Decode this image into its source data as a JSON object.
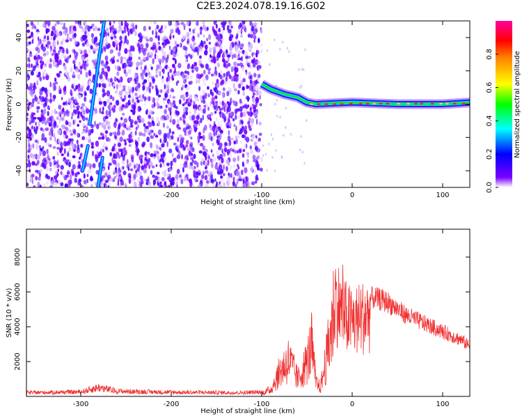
{
  "title": "C2E3.2024.078.19.16.G02",
  "chart_data": [
    {
      "type": "heatmap",
      "xlabel": "Height of straight line (km)",
      "ylabel": "Frequency (Hz)",
      "xlim": [
        -360,
        130
      ],
      "ylim": [
        -50,
        50
      ],
      "xticks": [
        -300,
        -200,
        -100,
        0,
        100
      ],
      "yticks": [
        -40,
        -20,
        0,
        20,
        40
      ],
      "colorbar": {
        "label": "Normalized spectral amplitude",
        "range": [
          0,
          1
        ],
        "ticks": [
          0.0,
          0.2,
          0.4,
          0.6,
          0.8
        ],
        "colors": [
          "#ffffff",
          "#7a00ff",
          "#0000ff",
          "#00ffff",
          "#00ff00",
          "#ffff00",
          "#ff0000",
          "#ff00a0"
        ]
      },
      "noise_region_x": [
        -360,
        -100
      ],
      "streak_segments": [
        {
          "x": [
            -290,
            -274
          ],
          "y": [
            -12,
            50
          ]
        },
        {
          "x": [
            -298,
            -292
          ],
          "y": [
            -40,
            -25
          ]
        },
        {
          "x": [
            -281,
            -276
          ],
          "y": [
            -50,
            -32
          ]
        }
      ],
      "ridge": [
        {
          "x": -100,
          "y": 12
        },
        {
          "x": -90,
          "y": 9
        },
        {
          "x": -75,
          "y": 6
        },
        {
          "x": -60,
          "y": 4
        },
        {
          "x": -50,
          "y": 1
        },
        {
          "x": -40,
          "y": 0
        },
        {
          "x": -20,
          "y": 0.5
        },
        {
          "x": 0,
          "y": 1
        },
        {
          "x": 50,
          "y": 0
        },
        {
          "x": 100,
          "y": 0
        },
        {
          "x": 130,
          "y": 1
        }
      ]
    },
    {
      "type": "line",
      "xlabel": "Height of straight line (km)",
      "ylabel": "SNR (10 * v/v)",
      "xlim": [
        -360,
        130
      ],
      "ylim": [
        0,
        9600
      ],
      "xticks": [
        -300,
        -200,
        -100,
        0,
        100
      ],
      "yticks": [
        2000,
        4000,
        6000,
        8000
      ],
      "series": [
        {
          "color": "#f03030",
          "envelope": [
            {
              "x": -360,
              "y": 250
            },
            {
              "x": -300,
              "y": 300
            },
            {
              "x": -280,
              "y": 600
            },
            {
              "x": -260,
              "y": 350
            },
            {
              "x": -200,
              "y": 280
            },
            {
              "x": -120,
              "y": 250
            },
            {
              "x": -100,
              "y": 300
            },
            {
              "x": -90,
              "y": 600
            },
            {
              "x": -80,
              "y": 2200
            },
            {
              "x": -70,
              "y": 3200
            },
            {
              "x": -60,
              "y": 1500
            },
            {
              "x": -50,
              "y": 3000
            },
            {
              "x": -45,
              "y": 4500
            },
            {
              "x": -40,
              "y": 1200
            },
            {
              "x": -35,
              "y": 800
            },
            {
              "x": -28,
              "y": 3500
            },
            {
              "x": -20,
              "y": 7500
            },
            {
              "x": -10,
              "y": 6000
            },
            {
              "x": 0,
              "y": 5500
            },
            {
              "x": 10,
              "y": 5800
            },
            {
              "x": 20,
              "y": 6100
            },
            {
              "x": 30,
              "y": 6000
            },
            {
              "x": 40,
              "y": 5800
            },
            {
              "x": 60,
              "y": 5000
            },
            {
              "x": 80,
              "y": 4500
            },
            {
              "x": 100,
              "y": 4000
            },
            {
              "x": 120,
              "y": 3500
            },
            {
              "x": 130,
              "y": 3100
            }
          ]
        }
      ]
    }
  ]
}
